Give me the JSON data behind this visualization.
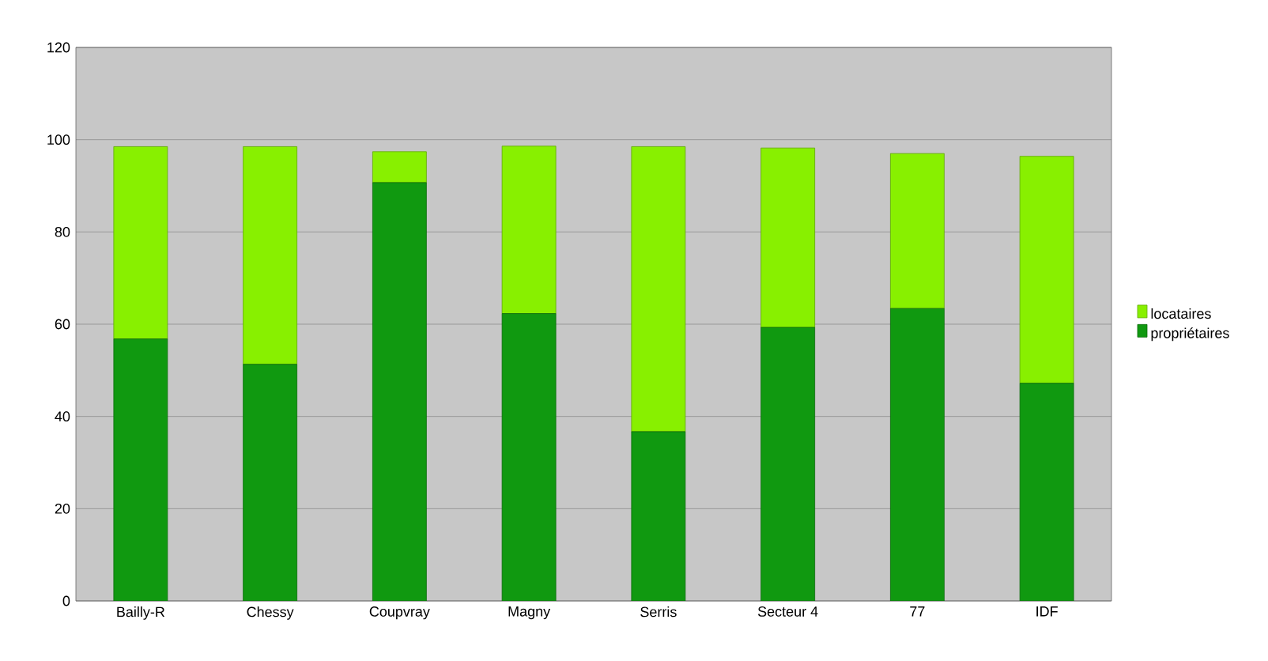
{
  "chart_data": {
    "type": "bar",
    "stacked": true,
    "categories": [
      "Bailly-R",
      "Chessy",
      "Coupvray",
      "Magny",
      "Serris",
      "Secteur 4",
      "77",
      "IDF"
    ],
    "series": [
      {
        "name": "propriétaires",
        "color": "#109910",
        "values": [
          56.8,
          51.3,
          90.7,
          62.3,
          36.7,
          59.3,
          63.4,
          47.2
        ]
      },
      {
        "name": "locataires",
        "color": "#88f000",
        "values": [
          41.7,
          47.2,
          6.7,
          36.3,
          61.8,
          38.9,
          33.6,
          49.2
        ]
      }
    ],
    "ylim": [
      0,
      120
    ],
    "yticks": [
      0,
      20,
      40,
      60,
      80,
      100,
      120
    ],
    "grid": "y",
    "legend": "right"
  }
}
